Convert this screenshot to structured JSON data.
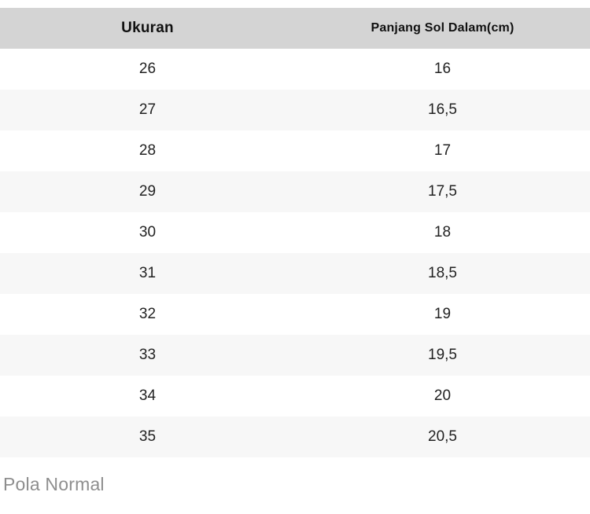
{
  "table": {
    "columns": [
      {
        "label": "Ukuran"
      },
      {
        "label": "Panjang Sol Dalam(cm)"
      }
    ],
    "rows": [
      {
        "size": "26",
        "length": "16"
      },
      {
        "size": "27",
        "length": "16,5"
      },
      {
        "size": "28",
        "length": "17"
      },
      {
        "size": "29",
        "length": "17,5"
      },
      {
        "size": "30",
        "length": "18"
      },
      {
        "size": "31",
        "length": "18,5"
      },
      {
        "size": "32",
        "length": "19"
      },
      {
        "size": "33",
        "length": "19,5"
      },
      {
        "size": "34",
        "length": "20"
      },
      {
        "size": "35",
        "length": "20,5"
      }
    ]
  },
  "footer": {
    "label": "Pola Normal"
  },
  "colors": {
    "header_background": "#d4d4d4",
    "header_text": "#111111",
    "row_stripe": "#f7f7f7",
    "cell_text": "#222222",
    "footer_text": "#8e8e8e",
    "page_background": "#ffffff"
  }
}
